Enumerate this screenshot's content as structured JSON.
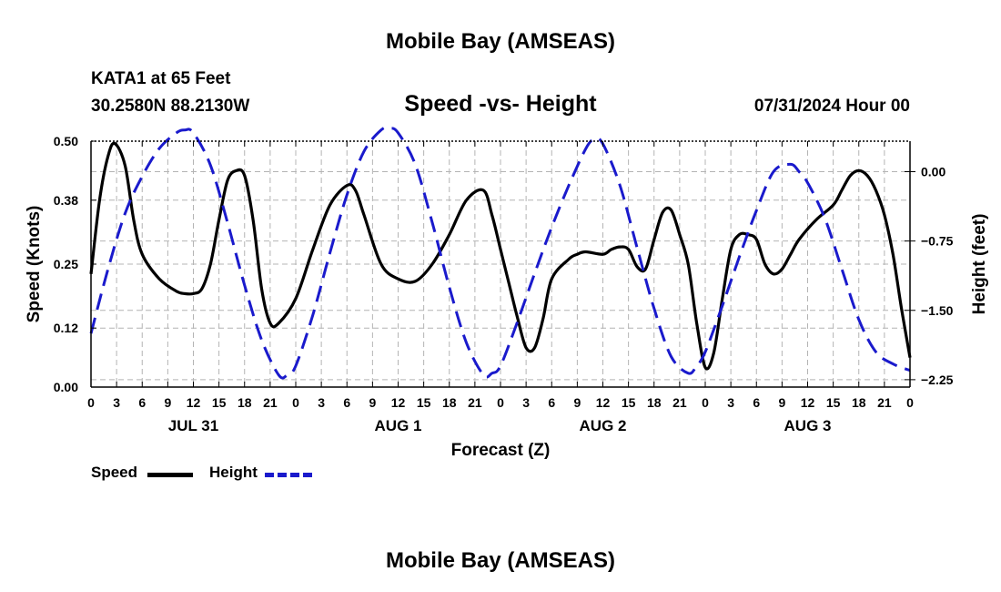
{
  "header": {
    "title": "Mobile Bay (AMSEAS)",
    "station": "KATA1 at 65 Feet",
    "coords": "30.2580N  88.2130W",
    "run_time": "07/31/2024 Hour 00",
    "footer_title": "Mobile Bay (AMSEAS)"
  },
  "legend": {
    "speed_label": "Speed",
    "height_label": "Height"
  },
  "colors": {
    "speed": "#000000",
    "height": "#1a1acc",
    "grid": "#b4b4b4"
  },
  "chart_data": {
    "type": "line",
    "title": "Speed -vs- Height",
    "xlabel": "Forecast (Z)",
    "ylabel": "Speed (Knots)",
    "y2label": "Height (feet)",
    "xlim": [
      0,
      96
    ],
    "ylim": [
      0,
      0.5
    ],
    "y2lim": [
      -2.33,
      0.33
    ],
    "x_ticks": [
      0,
      3,
      6,
      9,
      12,
      15,
      18,
      21,
      24,
      27,
      30,
      33,
      36,
      39,
      42,
      45,
      48,
      51,
      54,
      57,
      60,
      63,
      66,
      69,
      72,
      75,
      78,
      81,
      84,
      87,
      90,
      93,
      96
    ],
    "x_tick_labels": [
      "0",
      "3",
      "6",
      "9",
      "12",
      "15",
      "18",
      "21",
      "0",
      "3",
      "6",
      "9",
      "12",
      "15",
      "18",
      "21",
      "0",
      "3",
      "6",
      "9",
      "12",
      "15",
      "18",
      "21",
      "0",
      "3",
      "6",
      "9",
      "12",
      "15",
      "18",
      "21",
      "0"
    ],
    "day_labels": [
      {
        "x": 12,
        "label": "JUL 31"
      },
      {
        "x": 36,
        "label": "AUG 1"
      },
      {
        "x": 60,
        "label": "AUG 2"
      },
      {
        "x": 84,
        "label": "AUG 3"
      }
    ],
    "y_ticks": [
      0.0,
      0.12,
      0.25,
      0.38,
      0.5
    ],
    "y_tick_labels": [
      "0.00",
      "0.12",
      "0.25",
      "0.38",
      "0.50"
    ],
    "y2_ticks": [
      0.0,
      -0.75,
      -1.5,
      -2.25
    ],
    "y2_tick_labels": [
      "0.00",
      "−0.75",
      "−1.50",
      "−2.25"
    ],
    "series": [
      {
        "name": "Speed",
        "axis": "left",
        "x": [
          0,
          1,
          2,
          2.8,
          4,
          5,
          6,
          8,
          10,
          11,
          12,
          13,
          14,
          15,
          16,
          17,
          18,
          19,
          20,
          21,
          22,
          24,
          26,
          28,
          30,
          31,
          32,
          34,
          36,
          38,
          40,
          42,
          44,
          46,
          47,
          48,
          49,
          50,
          51,
          52,
          53,
          54,
          56,
          57,
          58,
          60,
          61,
          62,
          63,
          64,
          65,
          66,
          67,
          68,
          69,
          70,
          71,
          72,
          73,
          74,
          75,
          76,
          77,
          78,
          79,
          80,
          81,
          82,
          83,
          85,
          87,
          88,
          89,
          90,
          91,
          92,
          93,
          94,
          95,
          96
        ],
        "values": [
          0.23,
          0.38,
          0.47,
          0.495,
          0.45,
          0.34,
          0.27,
          0.22,
          0.195,
          0.19,
          0.19,
          0.2,
          0.25,
          0.34,
          0.42,
          0.44,
          0.43,
          0.34,
          0.2,
          0.13,
          0.13,
          0.18,
          0.28,
          0.37,
          0.41,
          0.4,
          0.35,
          0.25,
          0.22,
          0.215,
          0.25,
          0.31,
          0.38,
          0.4,
          0.35,
          0.28,
          0.21,
          0.14,
          0.08,
          0.08,
          0.14,
          0.22,
          0.26,
          0.27,
          0.275,
          0.27,
          0.28,
          0.285,
          0.28,
          0.245,
          0.24,
          0.3,
          0.355,
          0.36,
          0.31,
          0.25,
          0.13,
          0.04,
          0.07,
          0.18,
          0.28,
          0.31,
          0.31,
          0.3,
          0.25,
          0.23,
          0.24,
          0.27,
          0.3,
          0.34,
          0.37,
          0.4,
          0.43,
          0.44,
          0.43,
          0.4,
          0.35,
          0.27,
          0.16,
          0.06
        ]
      },
      {
        "name": "Height",
        "axis": "right",
        "x": [
          0,
          2,
          4,
          6,
          8,
          10,
          11,
          12,
          14,
          16,
          18,
          20,
          22,
          23,
          24,
          26,
          28,
          30,
          32,
          34,
          35,
          36,
          38,
          40,
          42,
          44,
          46,
          47,
          48,
          50,
          52,
          54,
          56,
          58,
          59,
          60,
          62,
          64,
          66,
          68,
          70,
          71,
          72,
          74,
          76,
          78,
          80,
          82,
          83,
          84,
          86,
          88,
          90,
          92,
          94,
          96
        ],
        "values": [
          -1.75,
          -1.05,
          -0.45,
          -0.05,
          0.25,
          0.42,
          0.45,
          0.42,
          0.07,
          -0.55,
          -1.23,
          -1.82,
          -2.2,
          -2.2,
          -2.1,
          -1.55,
          -0.88,
          -0.25,
          0.22,
          0.45,
          0.47,
          0.42,
          0.08,
          -0.55,
          -1.25,
          -1.85,
          -2.2,
          -2.18,
          -2.1,
          -1.62,
          -1.1,
          -0.6,
          -0.15,
          0.25,
          0.35,
          0.3,
          -0.15,
          -0.82,
          -1.48,
          -2.0,
          -2.18,
          -2.1,
          -1.95,
          -1.45,
          -0.92,
          -0.42,
          0.0,
          0.08,
          0.0,
          -0.12,
          -0.5,
          -1.05,
          -1.6,
          -1.95,
          -2.08,
          -2.15
        ]
      }
    ]
  }
}
